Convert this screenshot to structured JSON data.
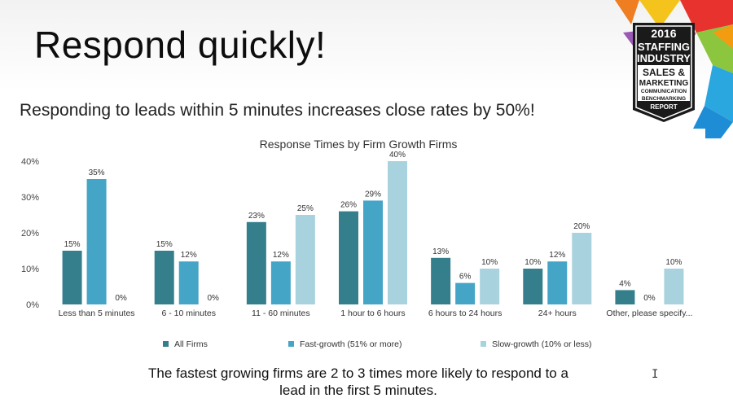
{
  "slide": {
    "title": "Respond quickly!",
    "subtitle": "Responding to leads within 5 minutes increases close rates by 50%!",
    "footer": "The fastest growing firms are 2 to 3 times more likely to respond to a lead in the first 5 minutes."
  },
  "badge": {
    "year": "2016",
    "line1": "STAFFING",
    "line2": "INDUSTRY",
    "line3": "SALES &",
    "line4": "MARKETING",
    "line5": "COMMUNICATION",
    "line6": "BENCHMARKING",
    "line7": "REPORT"
  },
  "cursor": "I",
  "chart_data": {
    "type": "bar",
    "title": "Response Times by Firm Growth Firms",
    "xlabel": "",
    "ylabel": "",
    "ylim": [
      0,
      40
    ],
    "yticks": [
      "0%",
      "10%",
      "20%",
      "30%",
      "40%"
    ],
    "grid": false,
    "legend": "bottom",
    "categories": [
      "Less than 5 minutes",
      "6 - 10 minutes",
      "11 - 60 minutes",
      "1 hour to 6 hours",
      "6 hours to 24 hours",
      "24+ hours",
      "Other, please specify..."
    ],
    "series": [
      {
        "name": "All Firms",
        "color": "#357f8d",
        "values": [
          15,
          15,
          23,
          26,
          13,
          10,
          4
        ],
        "labels": [
          "15%",
          "15%",
          "23%",
          "26%",
          "13%",
          "10%",
          "4%"
        ]
      },
      {
        "name": "Fast-growth (51% or more)",
        "color": "#45a5c7",
        "values": [
          35,
          12,
          12,
          29,
          6,
          12,
          0
        ],
        "labels": [
          "35%",
          "12%",
          "12%",
          "29%",
          "6%",
          "12%",
          "0%"
        ]
      },
      {
        "name": "Slow-growth (10% or less)",
        "color": "#a9d2df",
        "values": [
          0,
          0,
          25,
          40,
          10,
          20,
          10
        ],
        "labels": [
          "0%",
          "0%",
          "25%",
          "40%",
          "10%",
          "20%",
          "10%"
        ]
      }
    ]
  }
}
